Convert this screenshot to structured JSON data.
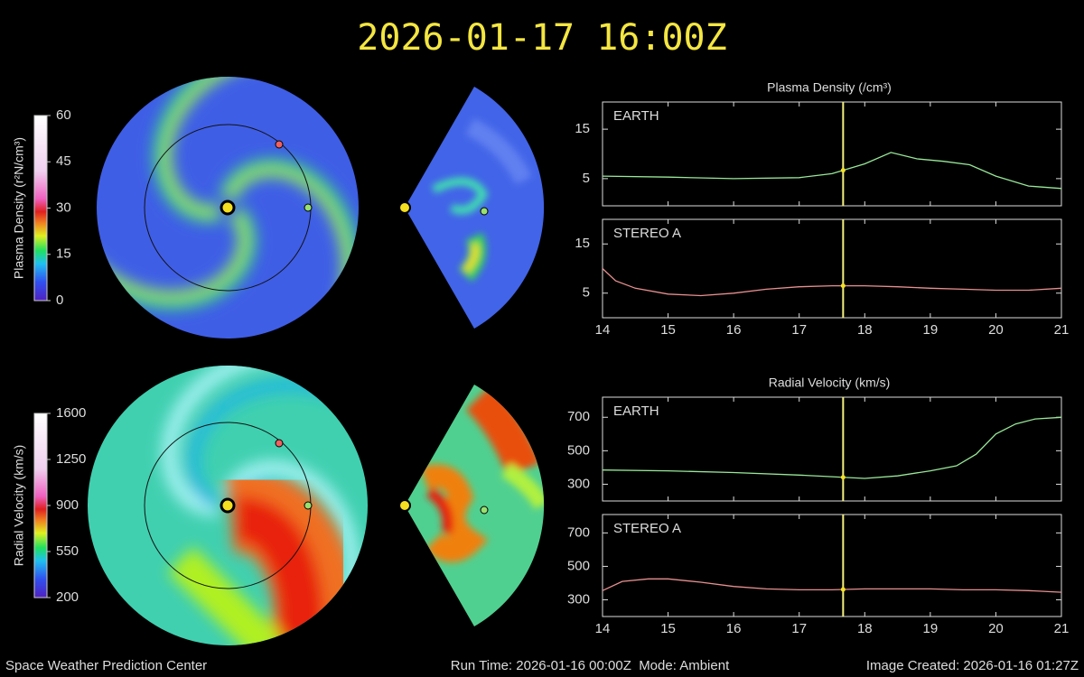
{
  "title": "2026-01-17 16:00Z",
  "footer": {
    "left": "Space Weather Prediction Center",
    "center": "Run Time: 2026-01-16 00:00Z  Mode: Ambient",
    "right": "Image Created: 2026-01-16 01:27Z"
  },
  "colorbars": [
    {
      "label": "Plasma Density (r²N/cm³)",
      "lim": [
        0,
        60
      ],
      "ticks": [
        0,
        15,
        30,
        45,
        60
      ]
    },
    {
      "label": "Radial Velocity (km/s)",
      "lim": [
        200,
        1600
      ],
      "ticks": [
        200,
        550,
        900,
        1250,
        1600
      ]
    }
  ],
  "chart_data": [
    {
      "type": "line",
      "title": "Plasma Density (/cm³)",
      "label": "EARTH",
      "color": "#98e898",
      "x": [
        14,
        15,
        16,
        17,
        17.5,
        18,
        18.4,
        18.8,
        19.2,
        19.6,
        20,
        20.5,
        21
      ],
      "values": [
        5.5,
        5.3,
        5.0,
        5.2,
        6.0,
        8.0,
        10.3,
        9.0,
        8.5,
        7.8,
        5.5,
        3.5,
        3.0
      ],
      "xlim": [
        14,
        21
      ],
      "xticks": [
        14,
        15,
        16,
        17,
        18,
        19,
        20,
        21
      ],
      "xtick_labels": false,
      "ylim": [
        -0.5,
        20.5
      ],
      "yticks": [
        5,
        15
      ],
      "marker_x": 17.67
    },
    {
      "type": "line",
      "label": "STEREO A",
      "color": "#e89090",
      "x": [
        14,
        14.2,
        14.5,
        15,
        15.5,
        16,
        16.5,
        17,
        17.5,
        18,
        18.5,
        19,
        19.5,
        20,
        20.5,
        21
      ],
      "values": [
        10,
        7.5,
        6,
        4.8,
        4.5,
        5,
        5.8,
        6.3,
        6.5,
        6.5,
        6.3,
        6.0,
        5.8,
        5.6,
        5.6,
        6
      ],
      "xlim": [
        14,
        21
      ],
      "xticks": [
        14,
        15,
        16,
        17,
        18,
        19,
        20,
        21
      ],
      "xtick_labels": true,
      "ylim": [
        0,
        20
      ],
      "yticks": [
        5,
        15
      ],
      "marker_x": 17.67
    },
    {
      "type": "line",
      "title": "Radial Velocity (km/s)",
      "label": "EARTH",
      "color": "#98e898",
      "x": [
        14,
        15,
        16,
        17,
        17.5,
        18,
        18.5,
        19,
        19.4,
        19.7,
        20,
        20.3,
        20.6,
        21
      ],
      "values": [
        385,
        380,
        370,
        355,
        345,
        335,
        350,
        380,
        410,
        480,
        600,
        660,
        690,
        700
      ],
      "xlim": [
        14,
        21
      ],
      "xticks": [
        14,
        15,
        16,
        17,
        18,
        19,
        20,
        21
      ],
      "xtick_labels": false,
      "ylim": [
        200,
        820
      ],
      "yticks": [
        300,
        500,
        700
      ],
      "marker_x": 17.67
    },
    {
      "type": "line",
      "label": "STEREO A",
      "color": "#e89090",
      "x": [
        14,
        14.3,
        14.7,
        15,
        15.5,
        16,
        16.5,
        17,
        17.5,
        18,
        18.5,
        19,
        19.5,
        20,
        20.5,
        21
      ],
      "values": [
        355,
        410,
        425,
        425,
        405,
        380,
        365,
        360,
        360,
        365,
        365,
        365,
        360,
        360,
        355,
        345
      ],
      "xlim": [
        14,
        21
      ],
      "xticks": [
        14,
        15,
        16,
        17,
        18,
        19,
        20,
        21
      ],
      "xtick_labels": true,
      "ylim": [
        200,
        810
      ],
      "yticks": [
        300,
        500,
        700
      ],
      "marker_x": 17.67
    }
  ]
}
